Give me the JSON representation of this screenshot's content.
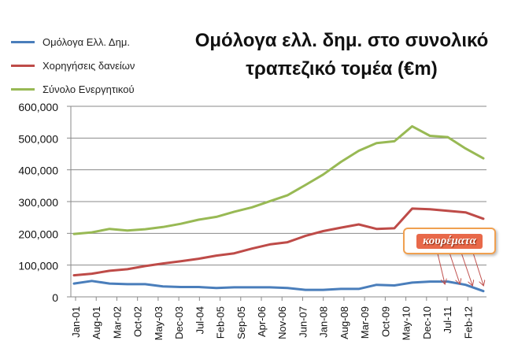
{
  "chart_data": {
    "type": "line",
    "title": "Ομόλογα ελλ. δημ. στο συνολικό τραπεζικό τομέα (€m)",
    "title_lines": [
      "Ομόλογα ελλ. δημ. στο συνολικό",
      "τραπεζικό τομέα (€m)"
    ],
    "xlabel": "",
    "ylabel": "",
    "ylim": [
      0,
      600000
    ],
    "yticks": [
      0,
      100000,
      200000,
      300000,
      400000,
      500000,
      600000
    ],
    "ytick_labels": [
      "0",
      "100,000",
      "200,000",
      "300,000",
      "400,000",
      "500,000",
      "600,000"
    ],
    "xtick_labels": [
      "Jan-01",
      "Aug-01",
      "Mar-02",
      "Oct-02",
      "May-03",
      "Dec-03",
      "Jul-04",
      "Feb-05",
      "Sep-05",
      "Apr-06",
      "Nov-06",
      "Jun-07",
      "Jan-08",
      "Aug-08",
      "Mar-09",
      "Oct-09",
      "May-10",
      "Dec-10",
      "Jul-11",
      "Feb-12"
    ],
    "x": [
      "Jan-01",
      "Jul-01",
      "Jan-02",
      "Jul-02",
      "Jan-03",
      "Jul-03",
      "Jan-04",
      "Jul-04",
      "Jan-05",
      "Jul-05",
      "Jan-06",
      "Jul-06",
      "Jan-07",
      "Jul-07",
      "Jan-08",
      "Jul-08",
      "Jan-09",
      "Jul-09",
      "Jan-10",
      "Jul-10",
      "Jan-11",
      "Jul-11",
      "Jan-12",
      "Jul-12"
    ],
    "series": [
      {
        "name": "Ομόλογα Ελλ. Δημ.",
        "color": "#4a7ebb",
        "values": [
          42000,
          50000,
          42000,
          40000,
          40000,
          33000,
          31000,
          31000,
          28000,
          30000,
          30000,
          30000,
          28000,
          22000,
          22000,
          25000,
          25000,
          38000,
          36000,
          45000,
          48000,
          48000,
          38000,
          18000
        ]
      },
      {
        "name": "Χορηγήσεις δανείων",
        "color": "#be4b48",
        "values": [
          68000,
          73000,
          82000,
          87000,
          97000,
          105000,
          112000,
          120000,
          130000,
          137000,
          152000,
          165000,
          172000,
          192000,
          207000,
          218000,
          228000,
          214000,
          216000,
          278000,
          276000,
          271000,
          266000,
          246000
        ]
      },
      {
        "name": "Σύνολο Ενεργητικού",
        "color": "#98b954",
        "values": [
          198000,
          203000,
          214000,
          209000,
          213000,
          220000,
          230000,
          243000,
          252000,
          268000,
          282000,
          301000,
          320000,
          352000,
          385000,
          425000,
          460000,
          484000,
          490000,
          537000,
          507000,
          503000,
          467000,
          436000
        ]
      }
    ],
    "grid": "horizontal",
    "legend": "top-left",
    "annotation": "κουρέματα"
  }
}
